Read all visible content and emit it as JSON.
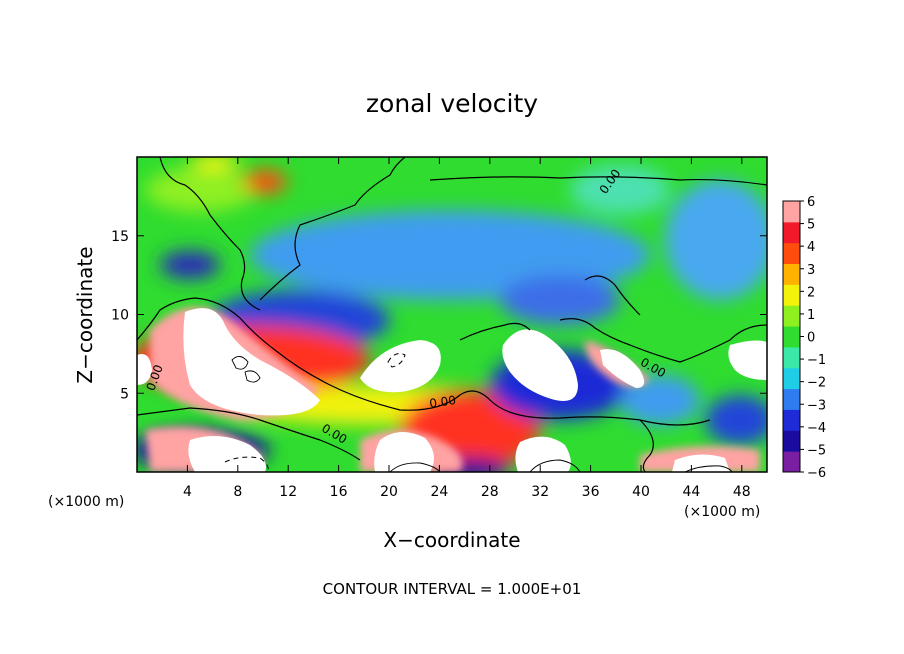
{
  "chart_data": {
    "type": "heatmap",
    "title": "zonal velocity",
    "xlabel": "X−coordinate",
    "ylabel": "Z−coordinate",
    "x_unit_left": "(×1000 m)",
    "x_unit_right": "(×1000 m)",
    "xlim": [
      0,
      50
    ],
    "ylim": [
      0,
      20
    ],
    "xticks": [
      4,
      8,
      12,
      16,
      20,
      24,
      28,
      32,
      36,
      40,
      44,
      48
    ],
    "yticks": [
      5,
      10,
      15
    ],
    "colorbar": {
      "min": -6,
      "max": 6,
      "ticks": [
        6,
        5,
        4,
        3,
        2,
        1,
        0,
        -1,
        -2,
        -3,
        -4,
        -5,
        -6
      ],
      "tick_labels": [
        "6",
        "5",
        "4",
        "3",
        "2",
        "1",
        "0",
        "−1",
        "−2",
        "−3",
        "−4",
        "−5",
        "−6"
      ],
      "colors": [
        "#7b1fa2",
        "#1a0c9e",
        "#1f2bd6",
        "#2f7bf0",
        "#1fcde6",
        "#3be8a8",
        "#2fdc2f",
        "#8ff020",
        "#f2f20a",
        "#ffb300",
        "#ff4d0d",
        "#f21a2a",
        "#ffa3a3"
      ]
    },
    "contour_labels": [
      {
        "text": "0.00",
        "x": 37.8,
        "z": 18.3,
        "rot": -55
      },
      {
        "text": "0.00",
        "x": 1.7,
        "z": 5.9,
        "rot": -70
      },
      {
        "text": "0.00",
        "x": 24.3,
        "z": 4.2,
        "rot": -8
      },
      {
        "text": "0.00",
        "x": 15.5,
        "z": 2.2,
        "rot": 30
      },
      {
        "text": "0.00",
        "x": 40.8,
        "z": 6.4,
        "rot": 30
      }
    ],
    "contour_note": "CONTOUR INTERVAL = 1.000E+01"
  }
}
